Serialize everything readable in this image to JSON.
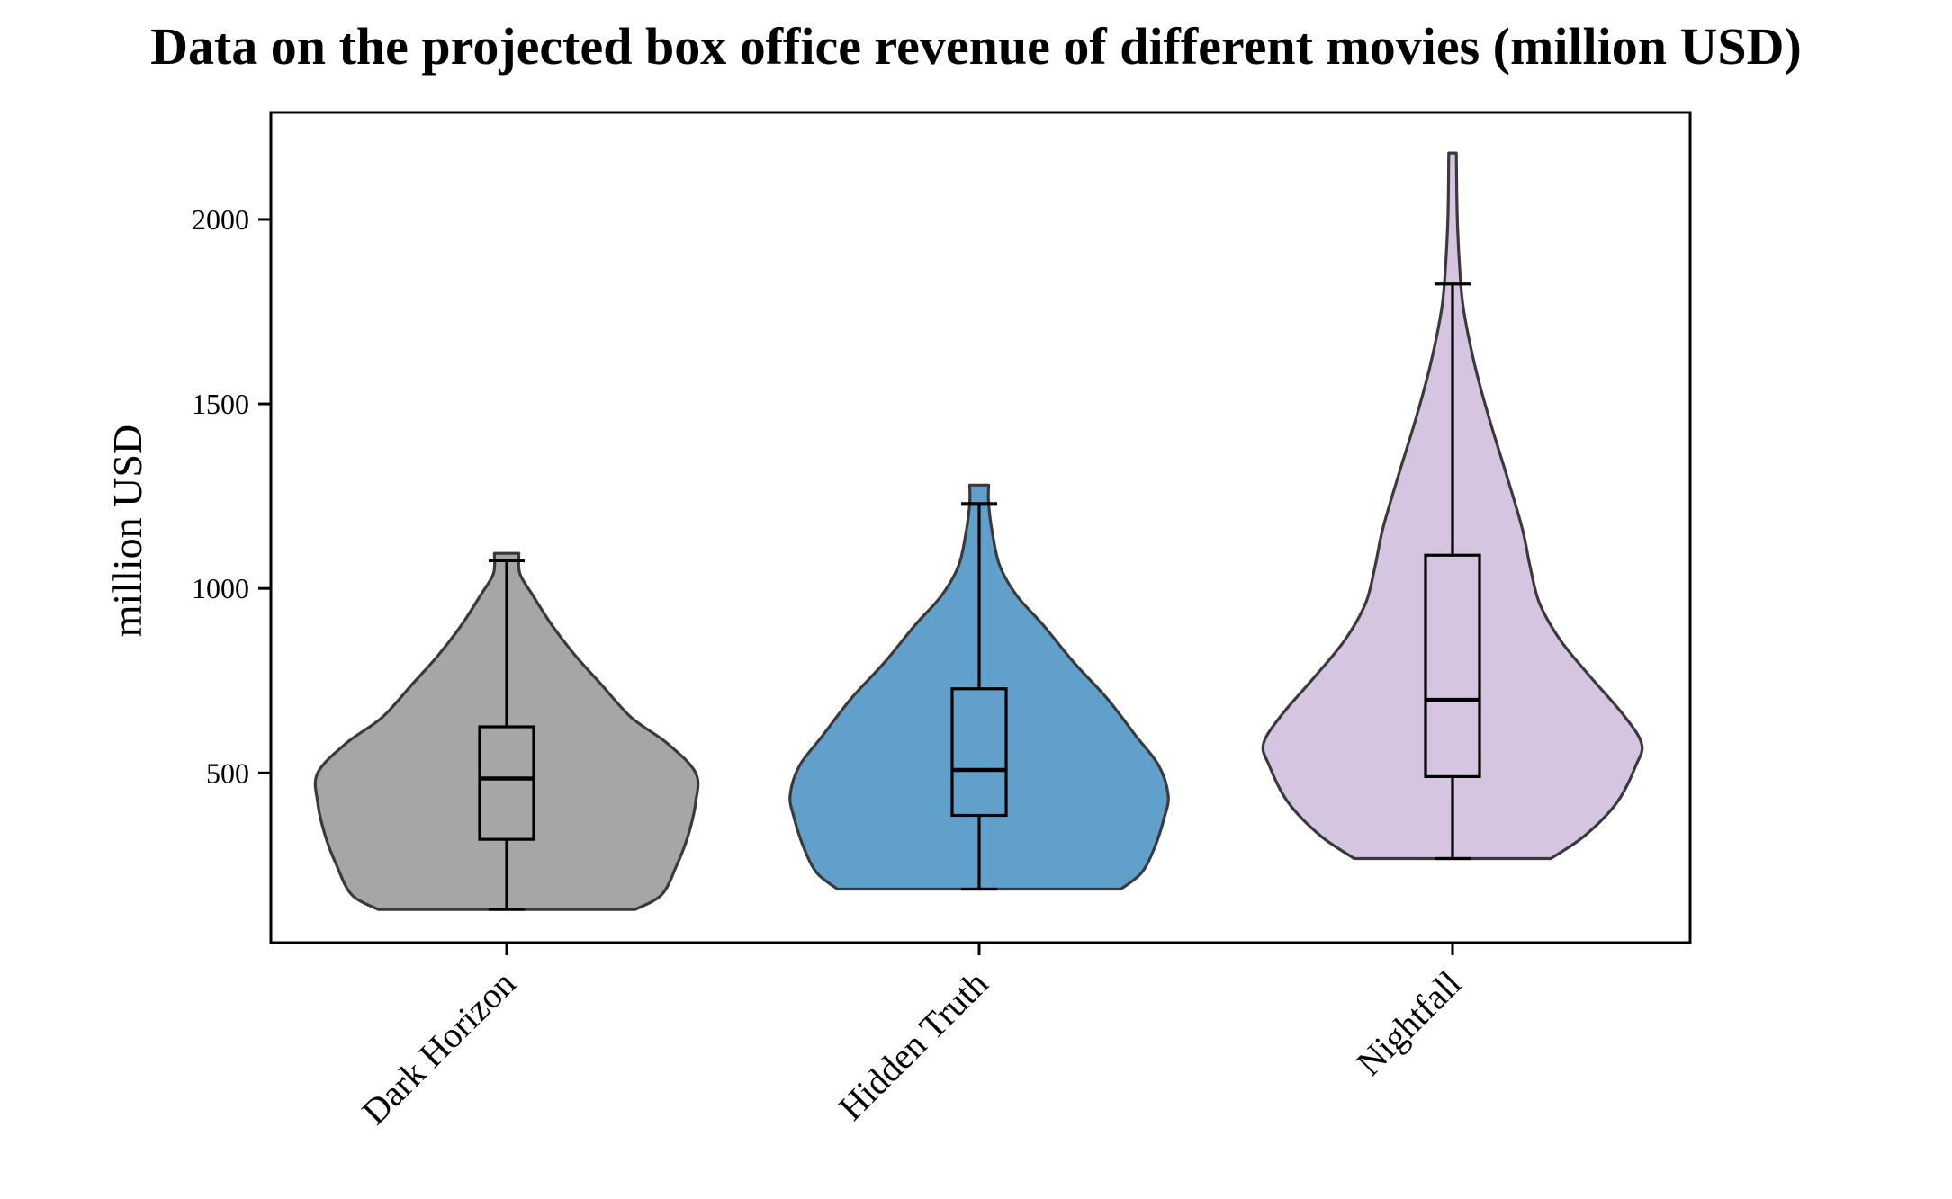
{
  "chart_data": {
    "type": "violin",
    "title": "Data on the projected box office revenue of different movies (million USD)",
    "xlabel": "",
    "ylabel": "million USD",
    "categories": [
      "Dark Horizon",
      "Hidden Truth",
      "Nightfall"
    ],
    "ylim": [
      40,
      2290
    ],
    "yticks": [
      500,
      1000,
      1500,
      2000
    ],
    "grid": false,
    "series": [
      {
        "category": "Dark Horizon",
        "color": "#a6a6a6",
        "min": 130,
        "q1": 320,
        "median": 485,
        "q3": 625,
        "max": 1075,
        "violin_top": 1095,
        "density": [
          [
            130,
            0.68
          ],
          [
            170,
            0.82
          ],
          [
            250,
            0.9
          ],
          [
            330,
            0.96
          ],
          [
            420,
            1.0
          ],
          [
            500,
            1.0
          ],
          [
            580,
            0.85
          ],
          [
            650,
            0.66
          ],
          [
            740,
            0.5
          ],
          [
            820,
            0.36
          ],
          [
            900,
            0.24
          ],
          [
            980,
            0.14
          ],
          [
            1040,
            0.07
          ],
          [
            1095,
            0.065
          ]
        ]
      },
      {
        "category": "Hidden Truth",
        "color": "#62a0cc",
        "min": 185,
        "q1": 385,
        "median": 508,
        "q3": 728,
        "max": 1230,
        "violin_top": 1280,
        "density": [
          [
            185,
            0.75
          ],
          [
            230,
            0.86
          ],
          [
            300,
            0.93
          ],
          [
            380,
            0.98
          ],
          [
            440,
            1.0
          ],
          [
            520,
            0.95
          ],
          [
            600,
            0.83
          ],
          [
            700,
            0.68
          ],
          [
            800,
            0.5
          ],
          [
            900,
            0.34
          ],
          [
            980,
            0.2
          ],
          [
            1060,
            0.11
          ],
          [
            1150,
            0.07
          ],
          [
            1230,
            0.05
          ],
          [
            1280,
            0.05
          ]
        ]
      },
      {
        "category": "Nightfall",
        "color": "#d5c5e1",
        "min": 268,
        "q1": 490,
        "median": 698,
        "q3": 1090,
        "max": 1825,
        "violin_top": 2180,
        "density": [
          [
            268,
            0.52
          ],
          [
            330,
            0.7
          ],
          [
            420,
            0.87
          ],
          [
            520,
            0.97
          ],
          [
            580,
            1.0
          ],
          [
            660,
            0.9
          ],
          [
            760,
            0.73
          ],
          [
            860,
            0.57
          ],
          [
            960,
            0.46
          ],
          [
            1060,
            0.41
          ],
          [
            1160,
            0.37
          ],
          [
            1300,
            0.29
          ],
          [
            1450,
            0.2
          ],
          [
            1600,
            0.12
          ],
          [
            1750,
            0.06
          ],
          [
            1850,
            0.04
          ],
          [
            2000,
            0.025
          ],
          [
            2180,
            0.02
          ]
        ]
      }
    ]
  }
}
